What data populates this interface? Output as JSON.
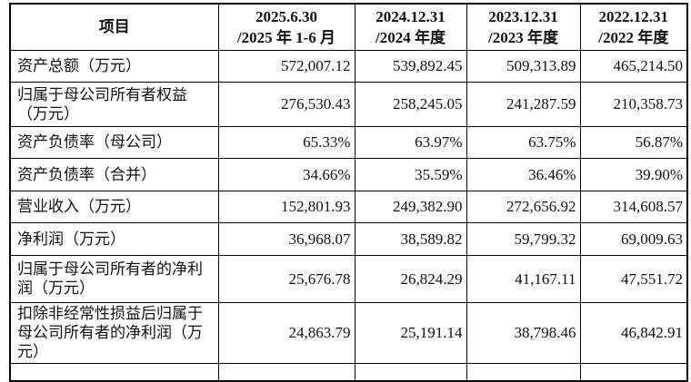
{
  "table": {
    "headers": [
      {
        "line1": "项目",
        "line2": ""
      },
      {
        "line1": "2025.6.30",
        "line2": "/2025 年 1-6 月"
      },
      {
        "line1": "2024.12.31",
        "line2": "/2024 年度"
      },
      {
        "line1": "2023.12.31",
        "line2": "/2023 年度"
      },
      {
        "line1": "2022.12.31",
        "line2": "/2022 年度"
      }
    ],
    "rows": [
      {
        "label": "资产总额（万元）",
        "values": [
          "572,007.12",
          "539,892.45",
          "509,313.89",
          "465,214.50"
        ]
      },
      {
        "label": "归属于母公司所有者权益（万元）",
        "values": [
          "276,530.43",
          "258,245.05",
          "241,287.59",
          "210,358.73"
        ]
      },
      {
        "label": "资产负债率（母公司）",
        "values": [
          "65.33%",
          "63.97%",
          "63.75%",
          "56.87%"
        ]
      },
      {
        "label": "资产负债率（合并）",
        "values": [
          "34.66%",
          "35.59%",
          "36.46%",
          "39.90%"
        ]
      },
      {
        "label": "营业收入（万元）",
        "values": [
          "152,801.93",
          "249,382.90",
          "272,656.92",
          "314,608.57"
        ]
      },
      {
        "label": "净利润（万元）",
        "values": [
          "36,968.07",
          "38,589.82",
          "59,799.32",
          "69,009.63"
        ]
      },
      {
        "label": "归属于母公司所有者的净利润（万元）",
        "values": [
          "25,676.78",
          "26,824.29",
          "41,167.11",
          "47,551.72"
        ]
      },
      {
        "label": "扣除非经常性损益后归属于母公司所有者的净利润（万元）",
        "values": [
          "24,863.79",
          "25,191.14",
          "38,798.46",
          "46,842.91"
        ]
      }
    ]
  }
}
